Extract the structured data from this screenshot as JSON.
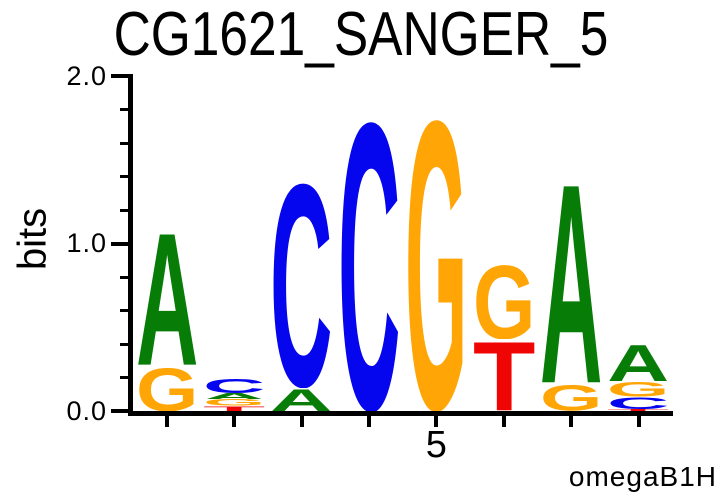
{
  "header": {
    "title": "CG1621_SANGER_5"
  },
  "chart_data": {
    "type": "sequence_logo",
    "title": "CG1621_SANGER_5",
    "ylabel": "bits",
    "ylim": [
      0.0,
      2.0
    ],
    "yticks": [
      "0.0",
      "1.0",
      "2.0"
    ],
    "minor_tick_step_bits": 0.2,
    "num_positions": 8,
    "x_tick_label": "5",
    "x_tick_label_position": 5,
    "attribution": "omegaB1H",
    "legend_position": "none",
    "base_colors": {
      "A": "#077C07",
      "C": "#0505EE",
      "G": "#FFA505",
      "T": "#F00505"
    },
    "positions": [
      {
        "index": 1,
        "stack": [
          {
            "base": "G",
            "bits": 0.27
          },
          {
            "base": "A",
            "bits": 0.83
          }
        ]
      },
      {
        "index": 2,
        "stack": [
          {
            "base": "T",
            "bits": 0.03
          },
          {
            "base": "G",
            "bits": 0.04
          },
          {
            "base": "A",
            "bits": 0.04
          },
          {
            "base": "C",
            "bits": 0.09
          }
        ]
      },
      {
        "index": 3,
        "stack": [
          {
            "base": "A",
            "bits": 0.14
          },
          {
            "base": "C",
            "bits": 1.27
          }
        ]
      },
      {
        "index": 4,
        "stack": [
          {
            "base": "C",
            "bits": 1.8
          }
        ]
      },
      {
        "index": 5,
        "stack": [
          {
            "base": "G",
            "bits": 1.81
          }
        ]
      },
      {
        "index": 6,
        "stack": [
          {
            "base": "T",
            "bits": 0.43
          },
          {
            "base": "G",
            "bits": 0.46
          }
        ]
      },
      {
        "index": 7,
        "stack": [
          {
            "base": "G",
            "bits": 0.16
          },
          {
            "base": "A",
            "bits": 1.25
          }
        ]
      },
      {
        "index": 8,
        "stack": [
          {
            "base": "T",
            "bits": 0.012
          },
          {
            "base": "C",
            "bits": 0.072
          },
          {
            "base": "G",
            "bits": 0.095
          },
          {
            "base": "A",
            "bits": 0.23
          }
        ]
      }
    ]
  }
}
